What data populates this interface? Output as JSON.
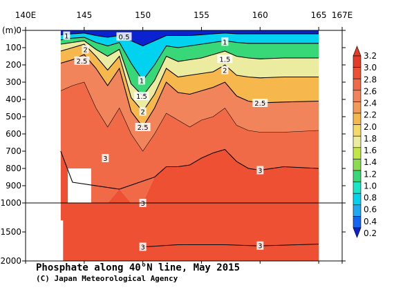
{
  "chart_data": {
    "type": "heatmap",
    "title": "Phosphate along 40°N line, May 2015",
    "credit": "(C) Japan Meteorological Agency",
    "x_ticks": [
      "140E",
      "145",
      "150",
      "155",
      "160",
      "165",
      "167E"
    ],
    "x_tick_values": [
      140,
      145,
      150,
      155,
      160,
      165,
      167
    ],
    "y_unit": "(m)",
    "y_ticks_upper": [
      "0",
      "100",
      "200",
      "300",
      "400",
      "500",
      "600",
      "700",
      "800",
      "900",
      "1000"
    ],
    "y_ticks_lower": [
      "1500",
      "2000"
    ],
    "x_range": [
      140,
      167
    ],
    "y_range_upper": [
      0,
      1000
    ],
    "y_range_lower": [
      1000,
      2000
    ],
    "colorbar_labels": [
      "3.2",
      "3.0",
      "2.8",
      "2.6",
      "2.4",
      "2.2",
      "2.0",
      "1.8",
      "1.6",
      "1.4",
      "1.2",
      "1.0",
      "0.8",
      "0.6",
      "0.4",
      "0.2"
    ],
    "colorbar_colors": [
      "#0a22d0",
      "#1466f0",
      "#20a8f0",
      "#00d2f0",
      "#18e6c8",
      "#38d878",
      "#8cdc50",
      "#c2e646",
      "#ececa0",
      "#f6da68",
      "#f6b84c",
      "#f49a58",
      "#f2845c",
      "#f06a48",
      "#ee5034",
      "#e43c26"
    ],
    "contour_labels": [
      "1",
      "0.5",
      "1",
      "2",
      "2.5",
      "1.5",
      "2",
      "1",
      "1.5",
      "2",
      "2.5",
      "2.5",
      "3",
      "3",
      "3",
      "3",
      "3"
    ],
    "profile_upper": [
      {
        "lon": 143.0,
        "d0.5": 25,
        "d1": 55,
        "d1.5": 80,
        "d2": 120,
        "d2.5": 190,
        "d2.8": 350,
        "d3": 700
      },
      {
        "lon": 144.0,
        "d0.5": 20,
        "d1": 45,
        "d1.5": 70,
        "d2": 100,
        "d2.5": 170,
        "d2.8": 320,
        "d3": 880
      },
      {
        "lon": 145.0,
        "d0.5": 15,
        "d1": 40,
        "d1.5": 60,
        "d2": 80,
        "d2.5": 140,
        "d2.8": 300,
        "d3": 1000
      },
      {
        "lon": 146.0,
        "d0.5": 30,
        "d1": 70,
        "d1.5": 110,
        "d2": 150,
        "d2.5": 220,
        "d2.8": 450,
        "d3": 1000
      },
      {
        "lon": 147.0,
        "d0.5": 40,
        "d1": 90,
        "d1.5": 150,
        "d2": 230,
        "d2.5": 320,
        "d2.8": 560,
        "d3": 1000
      },
      {
        "lon": 148.0,
        "d0.5": 30,
        "d1": 70,
        "d1.5": 110,
        "d2": 150,
        "d2.5": 220,
        "d2.8": 450,
        "d3": 920
      },
      {
        "lon": 149.0,
        "d0.5": 60,
        "d1": 190,
        "d1.5": 310,
        "d2": 390,
        "d2.5": 470,
        "d2.8": 600,
        "d3": 1000
      },
      {
        "lon": 150.0,
        "d0.5": 90,
        "d1": 290,
        "d1.5": 380,
        "d2": 470,
        "d2.5": 560,
        "d2.8": 700,
        "d3": 1000
      },
      {
        "lon": 151.0,
        "d0.5": 60,
        "d1": 200,
        "d1.5": 290,
        "d2": 370,
        "d2.5": 450,
        "d2.8": 600,
        "d3": 850
      },
      {
        "lon": 152.0,
        "d0.5": 30,
        "d1": 90,
        "d1.5": 150,
        "d2": 220,
        "d2.5": 300,
        "d2.8": 480,
        "d3": 790
      },
      {
        "lon": 153.0,
        "d0.5": 30,
        "d1": 100,
        "d1.5": 180,
        "d2": 270,
        "d2.5": 360,
        "d2.8": 520,
        "d3": 790
      },
      {
        "lon": 154.0,
        "d0.5": 30,
        "d1": 90,
        "d1.5": 170,
        "d2": 260,
        "d2.5": 370,
        "d2.8": 560,
        "d3": 780
      },
      {
        "lon": 155.0,
        "d0.5": 25,
        "d1": 80,
        "d1.5": 160,
        "d2": 250,
        "d2.5": 350,
        "d2.8": 520,
        "d3": 740
      },
      {
        "lon": 156.0,
        "d0.5": 20,
        "d1": 70,
        "d1.5": 140,
        "d2": 240,
        "d2.5": 330,
        "d2.8": 500,
        "d3": 710
      },
      {
        "lon": 157.0,
        "d0.5": 15,
        "d1": 60,
        "d1.5": 120,
        "d2": 200,
        "d2.5": 300,
        "d2.8": 450,
        "d3": 690
      },
      {
        "lon": 158.0,
        "d0.5": 20,
        "d1": 70,
        "d1.5": 150,
        "d2": 260,
        "d2.5": 380,
        "d2.8": 550,
        "d3": 760
      },
      {
        "lon": 159.0,
        "d0.5": 20,
        "d1": 75,
        "d1.5": 160,
        "d2": 270,
        "d2.5": 410,
        "d2.8": 580,
        "d3": 800
      },
      {
        "lon": 160.0,
        "d0.5": 20,
        "d1": 75,
        "d1.5": 165,
        "d2": 275,
        "d2.5": 420,
        "d2.8": 590,
        "d3": 810
      },
      {
        "lon": 162.0,
        "d0.5": 20,
        "d1": 75,
        "d1.5": 160,
        "d2": 270,
        "d2.5": 415,
        "d2.8": 590,
        "d3": 790
      },
      {
        "lon": 165.0,
        "d0.5": 20,
        "d1": 75,
        "d1.5": 160,
        "d2": 270,
        "d2.5": 410,
        "d2.8": 580,
        "d3": 800
      }
    ],
    "deep_contour_3": [
      {
        "lon": 150.0,
        "depth": 1760
      },
      {
        "lon": 153.0,
        "depth": 1720
      },
      {
        "lon": 157.0,
        "depth": 1720
      },
      {
        "lon": 160.0,
        "depth": 1740
      },
      {
        "lon": 165.0,
        "depth": 1710
      }
    ]
  }
}
